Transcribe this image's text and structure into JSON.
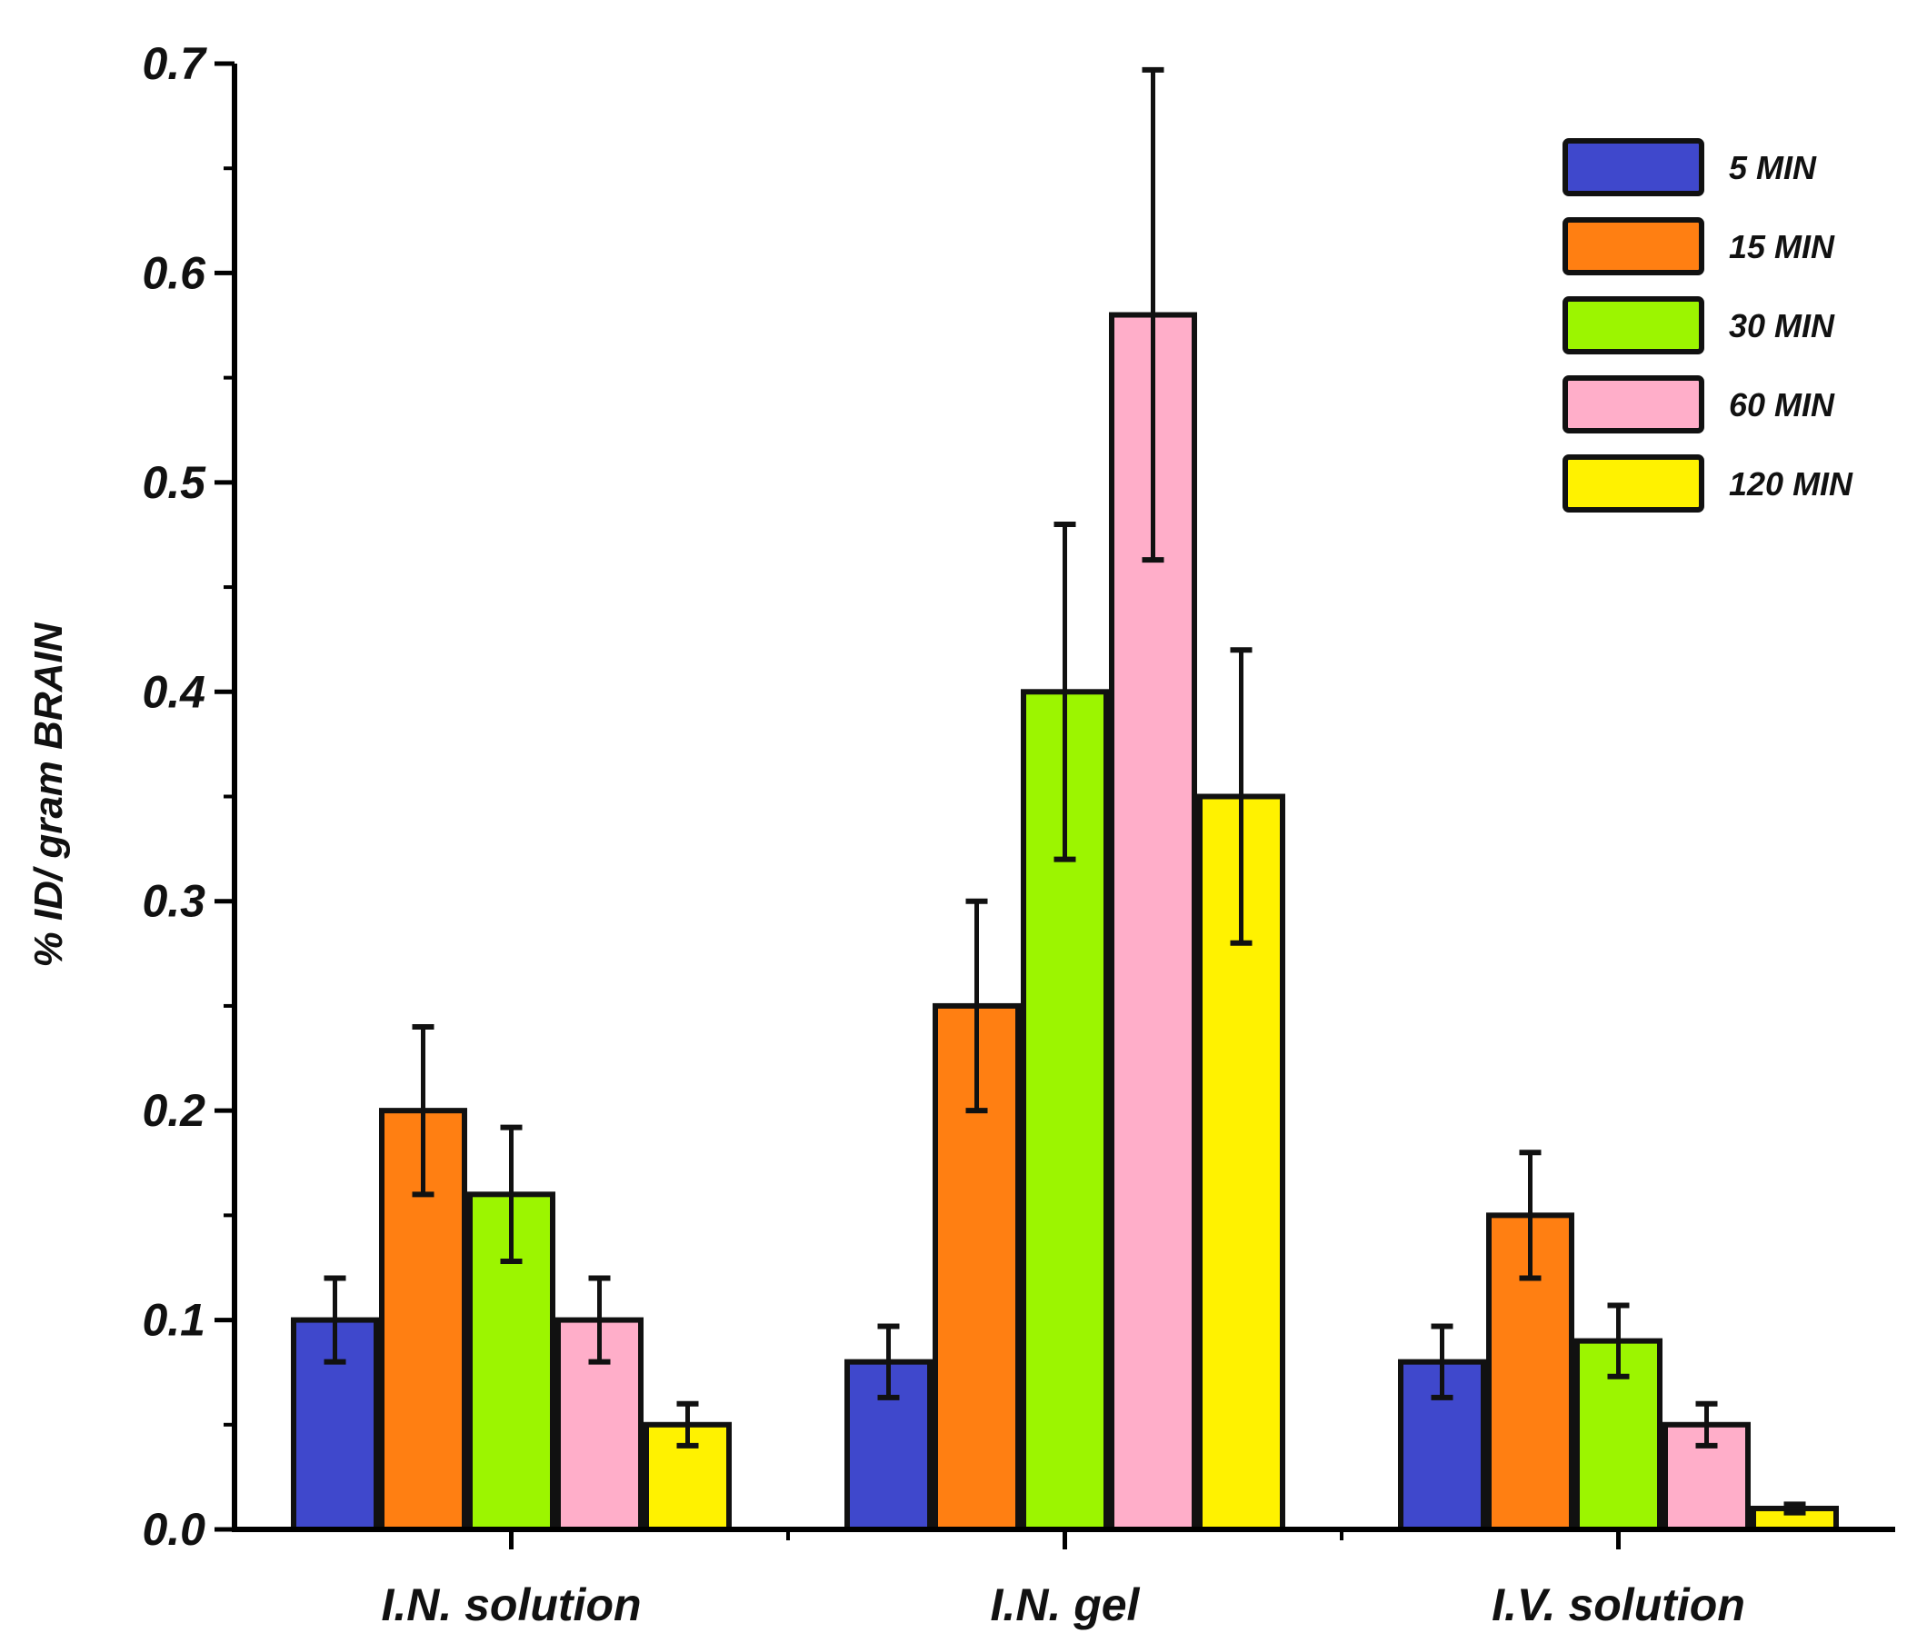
{
  "chart_data": {
    "type": "bar",
    "title": "",
    "xlabel": "",
    "ylabel": "% ID/ gram BRAIN",
    "ylim": [
      0,
      0.7
    ],
    "yticks": [
      "0.0",
      "0.1",
      "0.2",
      "0.3",
      "0.4",
      "0.5",
      "0.6",
      "0.7"
    ],
    "grid": false,
    "legend_position": "top-right",
    "categories": [
      "I.N. solution",
      "I.N. gel",
      "I.V. solution"
    ],
    "series": [
      {
        "name": "5 MIN",
        "color": "#3f48cc",
        "values": [
          0.1,
          0.08,
          0.08
        ],
        "errors": [
          0.02,
          0.017,
          0.017
        ]
      },
      {
        "name": "15 MIN",
        "color": "#ff7f12",
        "values": [
          0.2,
          0.25,
          0.15
        ],
        "errors": [
          0.04,
          0.05,
          0.03
        ]
      },
      {
        "name": "30 MIN",
        "color": "#9cf500",
        "values": [
          0.16,
          0.4,
          0.09
        ],
        "errors": [
          0.032,
          0.08,
          0.017
        ]
      },
      {
        "name": "60 MIN",
        "color": "#ffaec9",
        "values": [
          0.1,
          0.58,
          0.05
        ],
        "errors": [
          0.02,
          0.117,
          0.01
        ]
      },
      {
        "name": "120 MIN",
        "color": "#fff200",
        "values": [
          0.05,
          0.35,
          0.01
        ],
        "errors": [
          0.01,
          0.07,
          0.002
        ]
      }
    ]
  }
}
